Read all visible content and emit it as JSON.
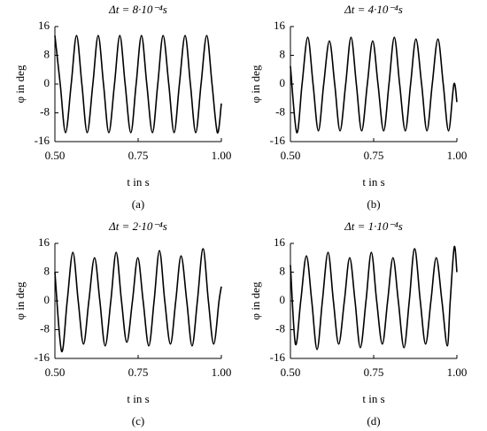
{
  "chart_data": [
    {
      "type": "line",
      "title": "Δt = 8·10⁻⁴s",
      "y_label": "φ in deg",
      "x_label": "t in s",
      "panel_label": "(a)",
      "color": "#000000",
      "xlim": [
        0.5,
        1
      ],
      "ylim": [
        -16,
        16
      ],
      "xticks": [
        {
          "value": 0.5,
          "label": "0.50"
        },
        {
          "value": 0.75,
          "label": "0.75"
        },
        {
          "value": 1,
          "label": "1.00"
        }
      ],
      "yticks": [
        16,
        8,
        0,
        -8,
        -16
      ],
      "x": [
        0.5,
        0.516,
        0.532,
        0.549,
        0.565,
        0.581,
        0.597,
        0.614,
        0.63,
        0.646,
        0.662,
        0.679,
        0.695,
        0.711,
        0.728,
        0.744,
        0.76,
        0.776,
        0.793,
        0.809,
        0.825,
        0.842,
        0.858,
        0.874,
        0.891,
        0.907,
        0.923,
        0.939,
        0.956,
        0.972,
        0.988,
        1.0
      ],
      "values": [
        13.5,
        0,
        -13.5,
        0,
        13.5,
        0,
        -13.5,
        0,
        13.5,
        0,
        -13.5,
        0,
        13.5,
        0,
        -13.5,
        0,
        13.5,
        0,
        -13.5,
        0,
        13.5,
        0,
        -13.5,
        0,
        13.5,
        0,
        -13.5,
        0,
        13.5,
        0,
        -13.5,
        -5.4
      ]
    },
    {
      "type": "line",
      "title": "Δt = 4·10⁻⁴s",
      "y_label": "φ in deg",
      "x_label": "t in s",
      "panel_label": "(b)",
      "color": "#000000",
      "xlim": [
        0.5,
        1
      ],
      "ylim": [
        -16,
        16
      ],
      "xticks": [
        {
          "value": 0.5,
          "label": "0.50"
        },
        {
          "value": 0.75,
          "label": "0.75"
        },
        {
          "value": 1,
          "label": "1.00"
        }
      ],
      "yticks": [
        16,
        8,
        0,
        -8,
        -16
      ],
      "x": [
        0.5,
        0.519,
        0.535,
        0.552,
        0.568,
        0.584,
        0.6,
        0.617,
        0.633,
        0.649,
        0.666,
        0.682,
        0.698,
        0.714,
        0.731,
        0.747,
        0.763,
        0.78,
        0.796,
        0.812,
        0.828,
        0.845,
        0.861,
        0.877,
        0.894,
        0.91,
        0.926,
        0.943,
        0.959,
        0.975,
        0.991,
        1.0
      ],
      "values": [
        5,
        -13.5,
        0,
        13,
        0,
        -13,
        0,
        12,
        0,
        -13,
        0,
        13,
        0,
        -13,
        0,
        12,
        0,
        -13,
        0,
        13,
        0,
        -13,
        0,
        12.5,
        0,
        -13,
        0,
        12.5,
        0,
        -13,
        0,
        -5
      ]
    },
    {
      "type": "line",
      "title": "Δt = 2·10⁻⁴s",
      "y_label": "φ in deg",
      "x_label": "t in s",
      "panel_label": "(c)",
      "color": "#000000",
      "xlim": [
        0.5,
        1
      ],
      "ylim": [
        -16,
        16
      ],
      "xticks": [
        {
          "value": 0.5,
          "label": "0.50"
        },
        {
          "value": 0.75,
          "label": "0.75"
        },
        {
          "value": 1,
          "label": "1.00"
        }
      ],
      "yticks": [
        16,
        8,
        0,
        -8,
        -16
      ],
      "x": [
        0.5,
        0.52,
        0.537,
        0.554,
        0.57,
        0.586,
        0.602,
        0.619,
        0.635,
        0.651,
        0.668,
        0.684,
        0.7,
        0.716,
        0.733,
        0.749,
        0.765,
        0.782,
        0.798,
        0.814,
        0.83,
        0.847,
        0.863,
        0.879,
        0.896,
        0.912,
        0.928,
        0.945,
        0.961,
        0.977,
        0.993,
        1.0
      ],
      "values": [
        8,
        -14,
        0,
        13.5,
        0,
        -12,
        0,
        12,
        0,
        -12.5,
        0,
        13.5,
        0,
        -11.5,
        0,
        12,
        0,
        -12.5,
        0,
        14,
        0,
        -12,
        0,
        12.5,
        0,
        -12.5,
        0,
        14.5,
        0,
        -12,
        0,
        4
      ]
    },
    {
      "type": "line",
      "title": "Δt = 1·10⁻⁴s",
      "y_label": "φ in deg",
      "x_label": "t in s",
      "panel_label": "(d)",
      "color": "#000000",
      "xlim": [
        0.5,
        1
      ],
      "ylim": [
        -16,
        16
      ],
      "xticks": [
        {
          "value": 0.5,
          "label": "0.50"
        },
        {
          "value": 0.75,
          "label": "0.75"
        },
        {
          "value": 1,
          "label": "1.00"
        }
      ],
      "yticks": [
        16,
        8,
        0,
        -8,
        -16
      ],
      "x": [
        0.5,
        0.515,
        0.531,
        0.548,
        0.564,
        0.58,
        0.596,
        0.613,
        0.629,
        0.645,
        0.662,
        0.678,
        0.694,
        0.71,
        0.727,
        0.743,
        0.759,
        0.776,
        0.792,
        0.808,
        0.824,
        0.841,
        0.857,
        0.873,
        0.89,
        0.906,
        0.922,
        0.938,
        0.955,
        0.971,
        0.98,
        0.992,
        1.0
      ],
      "values": [
        10,
        -12,
        0,
        12.5,
        0,
        -13.5,
        0,
        13.5,
        0,
        -12,
        0,
        12,
        0,
        -13,
        0,
        13.5,
        0,
        -12,
        0,
        12,
        0,
        -13,
        0,
        14.5,
        0,
        -12,
        0,
        12,
        0,
        -12.5,
        0,
        15,
        8
      ]
    }
  ]
}
